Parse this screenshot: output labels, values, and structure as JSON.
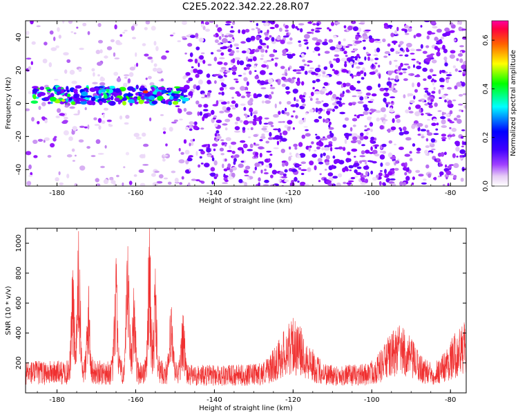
{
  "figure_title": "C2E5.2022.342.22.28.R07",
  "chart_data": [
    {
      "type": "heatmap",
      "xlabel": "Height of straight line (km)",
      "ylabel": "Frequency (Hz)",
      "xlim": [
        -188,
        -76
      ],
      "ylim": [
        -50,
        50
      ],
      "xticks": [
        -180,
        -160,
        -140,
        -120,
        -100,
        -80
      ],
      "yticks": [
        -40,
        -20,
        0,
        20,
        40
      ],
      "colorbar": {
        "label": "Normalized spectral amplitude",
        "range": [
          0.0,
          0.68
        ],
        "ticks": [
          0.0,
          0.2,
          0.4,
          0.6
        ],
        "colormap": [
          "#ffffff",
          "#e6ccf5",
          "#c080f0",
          "#8c00ff",
          "#4000ff",
          "#0000ff",
          "#00ffff",
          "#00ff00",
          "#ffff00",
          "#ff8000",
          "#ff0000",
          "#ff00ff"
        ]
      },
      "signal_band": {
        "x_range": [
          -186,
          -147
        ],
        "frequency_hz": 5,
        "peak_amplitude": 0.65
      },
      "noise_regions": [
        {
          "x_range": [
            -188,
            -147
          ],
          "density": "sparse",
          "level": 0.15
        },
        {
          "x_range": [
            -147,
            -76
          ],
          "density": "dense",
          "level": 0.2
        }
      ],
      "grid": false
    },
    {
      "type": "line",
      "xlabel": "Height of straight line (km)",
      "ylabel": "SNR (10 * v/v)",
      "xlim": [
        -188,
        -76
      ],
      "ylim": [
        0,
        1100
      ],
      "xticks": [
        -180,
        -160,
        -140,
        -120,
        -100,
        -80
      ],
      "yticks": [
        200,
        400,
        600,
        800,
        1000
      ],
      "color": "#f03030",
      "baseline_snr": 130,
      "peaks": [
        {
          "x": -174.5,
          "y": 1080
        },
        {
          "x": -176,
          "y": 820
        },
        {
          "x": -172,
          "y": 700
        },
        {
          "x": -165,
          "y": 900
        },
        {
          "x": -162,
          "y": 980
        },
        {
          "x": -160.5,
          "y": 700
        },
        {
          "x": -156.5,
          "y": 1100
        },
        {
          "x": -155,
          "y": 830
        },
        {
          "x": -151,
          "y": 560
        },
        {
          "x": -148,
          "y": 520
        },
        {
          "x": -120,
          "y": 500
        },
        {
          "x": -93,
          "y": 450
        },
        {
          "x": -76.5,
          "y": 470
        }
      ],
      "grid": false
    }
  ]
}
